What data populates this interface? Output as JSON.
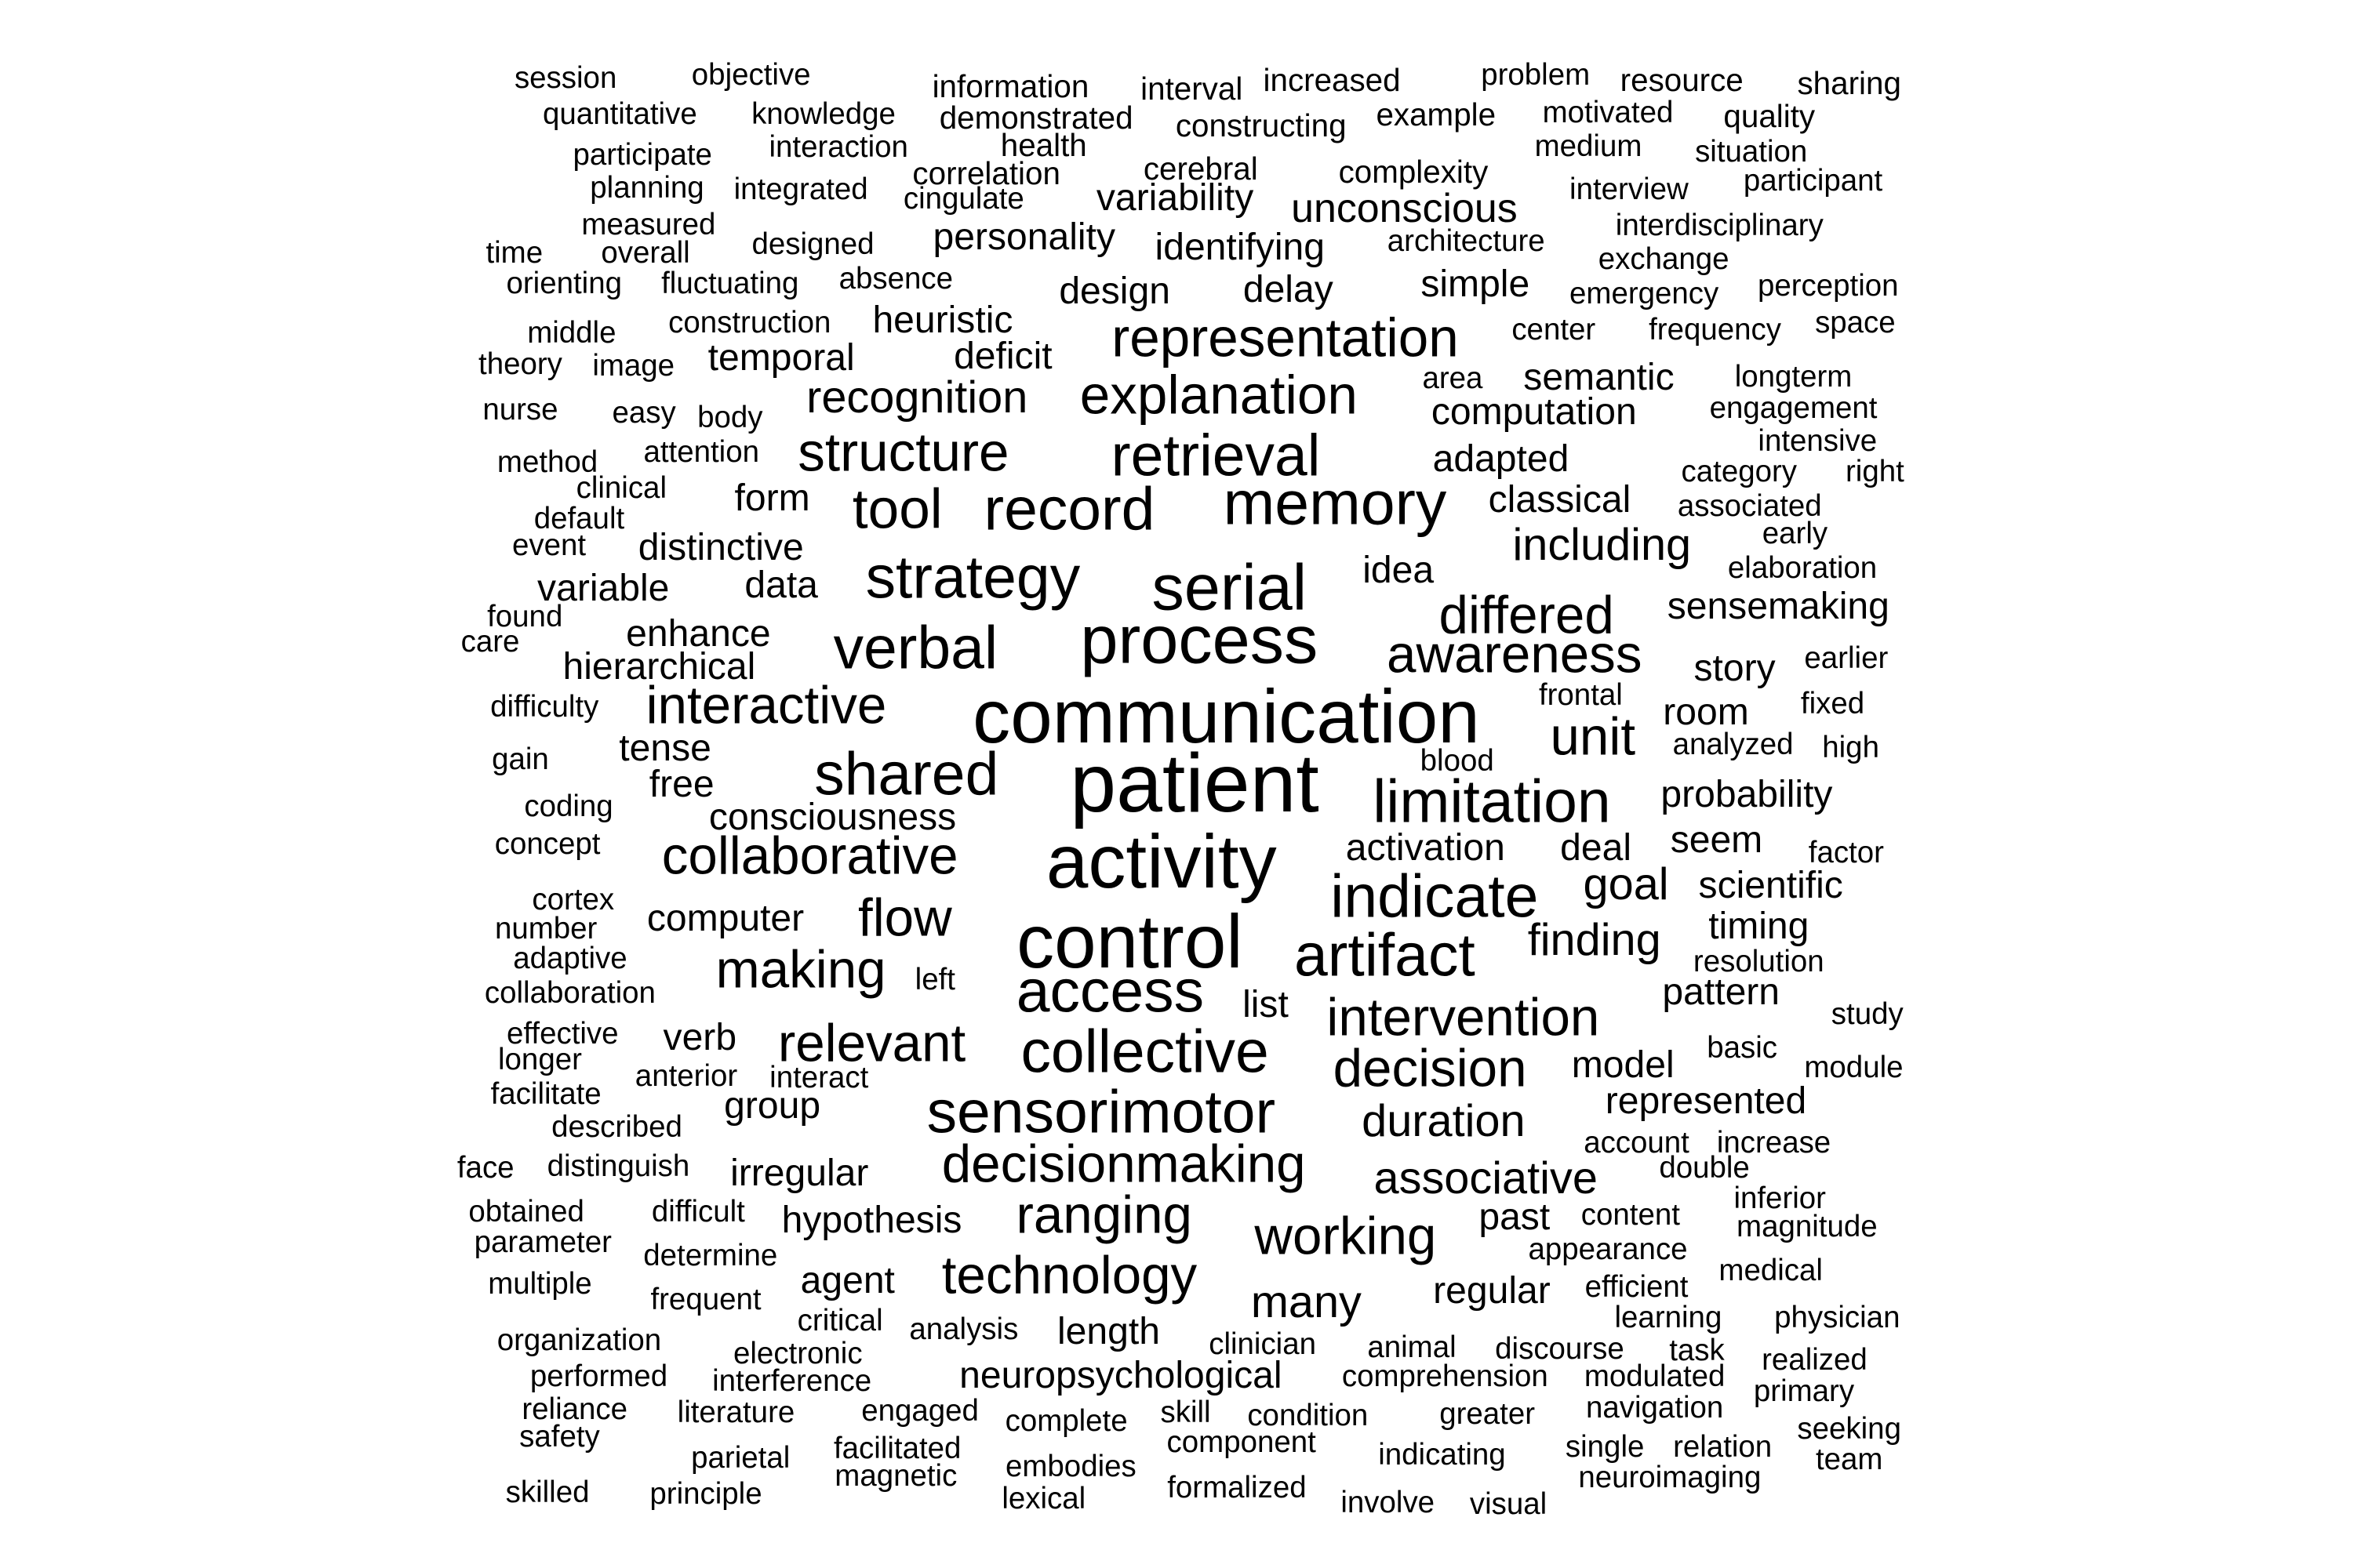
{
  "words": [
    "session",
    "objective",
    "information",
    "interval",
    "increased",
    "problem",
    "resource",
    "sharing",
    "quantitative",
    "knowledge",
    "demonstrated",
    "constructing",
    "example",
    "motivated",
    "quality",
    "health",
    "participate",
    "interaction",
    "medium",
    "situation",
    "correlation",
    "cerebral",
    "complexity",
    "participant",
    "planning",
    "integrated",
    "variability",
    "cingulate",
    "interview",
    "unconscious",
    "measured",
    "personality",
    "interdisciplinary",
    "time",
    "overall",
    "designed",
    "identifying",
    "architecture",
    "exchange",
    "orienting",
    "fluctuating",
    "absence",
    "design",
    "delay",
    "simple",
    "emergency",
    "perception",
    "middle",
    "construction",
    "heuristic",
    "center",
    "frequency",
    "space",
    "theory",
    "image",
    "temporal",
    "deficit",
    "representation",
    "area",
    "semantic",
    "longterm",
    "nurse",
    "easy",
    "body",
    "recognition",
    "explanation",
    "computation",
    "engagement",
    "intensive",
    "method",
    "attention",
    "structure",
    "retrieval",
    "adapted",
    "clinical",
    "category",
    "right",
    "default",
    "form",
    "classical",
    "associated",
    "event",
    "tool",
    "record",
    "memory",
    "early",
    "distinctive",
    "including",
    "variable",
    "data",
    "strategy",
    "serial",
    "idea",
    "elaboration",
    "found",
    "enhance",
    "differed",
    "sensemaking",
    "care",
    "verbal",
    "process",
    "hierarchical",
    "awareness",
    "story",
    "earlier",
    "difficulty",
    "interactive",
    "communication",
    "frontal",
    "room",
    "fixed",
    "tense",
    "unit",
    "analyzed",
    "gain",
    "free",
    "high",
    "blood",
    "shared",
    "patient",
    "limitation",
    "coding",
    "probability",
    "consciousness",
    "concept",
    "activity",
    "activation",
    "deal",
    "seem",
    "collaborative",
    "factor",
    "cortex",
    "indicate",
    "goal",
    "scientific",
    "number",
    "computer",
    "flow",
    "timing",
    "control",
    "finding",
    "adaptive",
    "artifact",
    "resolution",
    "making",
    "left",
    "collaboration",
    "access",
    "list",
    "pattern",
    "intervention",
    "study",
    "effective",
    "verb",
    "relevant",
    "basic",
    "collective",
    "longer",
    "model",
    "module",
    "anterior",
    "interact",
    "facilitate",
    "decision",
    "group",
    "represented",
    "described",
    "sensorimotor",
    "duration",
    "account",
    "increase",
    "face",
    "distinguish",
    "irregular",
    "decisionmaking",
    "double",
    "associative",
    "obtained",
    "difficult",
    "inferior",
    "past",
    "hypothesis",
    "ranging",
    "content",
    "parameter",
    "magnitude",
    "working",
    "appearance",
    "determine",
    "medical",
    "agent",
    "technology",
    "multiple",
    "regular",
    "efficient",
    "frequent",
    "many",
    "organization",
    "critical",
    "learning",
    "physician",
    "analysis",
    "length",
    "electronic",
    "clinician",
    "animal",
    "discourse",
    "task",
    "realized",
    "performed",
    "neuropsychological",
    "comprehension",
    "modulated",
    "interference",
    "primary",
    "reliance",
    "literature",
    "engaged",
    "skill",
    "condition",
    "greater",
    "navigation",
    "seeking",
    "complete",
    "safety",
    "component",
    "indicating",
    "single",
    "relation",
    "parietal",
    "facilitated",
    "team",
    "embodies",
    "magnetic",
    "neuroimaging",
    "skilled",
    "principle",
    "formalized",
    "lexical",
    "involve",
    "visual"
  ]
}
